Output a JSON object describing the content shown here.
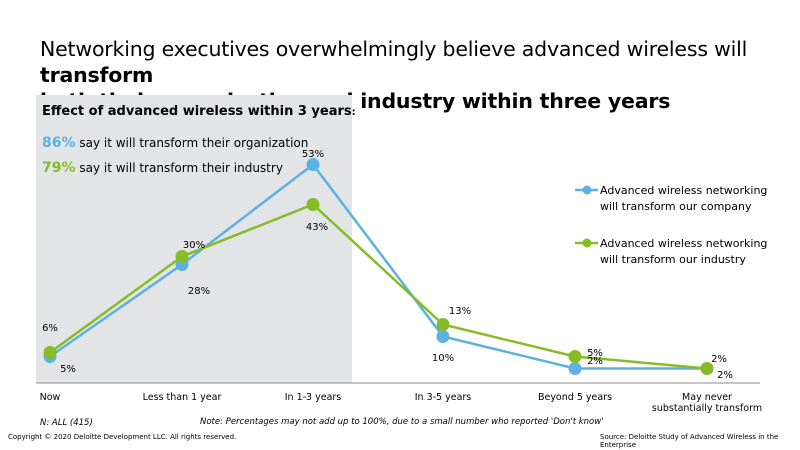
{
  "title": {
    "part1": "Networking executives overwhelmingly believe advanced wireless will ",
    "bold1": "transform",
    "bold2": "both their organization and industry within three years"
  },
  "panel": {
    "heading": "Effect of advanced wireless within 3 years",
    "heading_suffix": ":",
    "stat_org_pct": "86%",
    "stat_org_text": "say it will transform their organization",
    "stat_ind_pct": "79%",
    "stat_ind_text": "say it will transform their industry"
  },
  "colors": {
    "company": "#5bb1e3",
    "industry": "#86bc25",
    "panel": "#e3e4e6"
  },
  "chart_data": {
    "type": "line",
    "categories": [
      "Now",
      "Less than 1 year",
      "In 1-3 years",
      "In 3-5 years",
      "Beyond 5 years",
      "May never substantially transform"
    ],
    "series": [
      {
        "name": "Advanced wireless networking will transform our company",
        "values": [
          5,
          28,
          53,
          10,
          2,
          2
        ],
        "labels": [
          "5%",
          "28%",
          "53%",
          "10%",
          "2%",
          "2%"
        ]
      },
      {
        "name": "Advanced wireless networking will transform our industry",
        "values": [
          6,
          30,
          43,
          13,
          5,
          2
        ],
        "labels": [
          "6%",
          "30%",
          "43%",
          "13%",
          "5%",
          "2%"
        ]
      }
    ],
    "legend_lines": [
      [
        "Advanced wireless networking",
        "will transform our company"
      ],
      [
        "Advanced wireless networking",
        "will transform our industry"
      ]
    ],
    "legend": "right",
    "grid": false,
    "ylim": [
      0,
      55
    ]
  },
  "footer": {
    "n": "N: ALL (415)",
    "note": "Note: Percentages may not add up to 100%, due to a small number who reported 'Don't know'",
    "copyright": "Copyright © 2020 Deloitte Development LLC. All rights reserved.",
    "source": "Source: Deloitte Study of Advanced Wireless in the Enterprise"
  }
}
